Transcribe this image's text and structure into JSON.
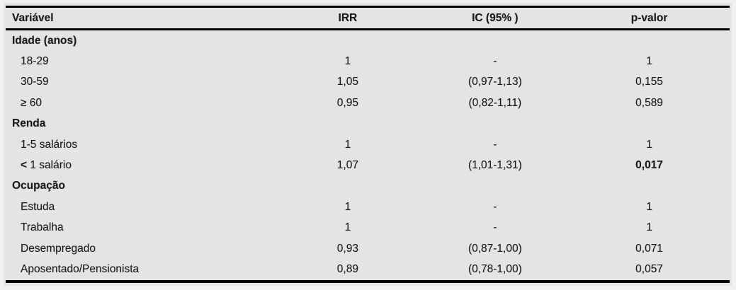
{
  "colors": {
    "page_background": "#f1f1f1",
    "table_background": "#e4e4e4",
    "rule_color": "#000000",
    "text_color": "#1c1c1c"
  },
  "table": {
    "columns": [
      "Variável",
      "IRR",
      "IC (95% )",
      "p-valor"
    ],
    "rows": [
      {
        "kind": "section",
        "label": "Idade (anos)"
      },
      {
        "kind": "data",
        "label": "18-29",
        "irr": "1",
        "ic": "-",
        "p": "1"
      },
      {
        "kind": "data",
        "label": "30-59",
        "irr": "1,05",
        "ic": "(0,97-1,13)",
        "p": "0,155"
      },
      {
        "kind": "data",
        "label": "≥ 60",
        "irr": "0,95",
        "ic": "(0,82-1,11)",
        "p": "0,589"
      },
      {
        "kind": "section",
        "label": "Renda"
      },
      {
        "kind": "data",
        "label": "1-5 salários",
        "irr": "1",
        "ic": "-",
        "p": "1"
      },
      {
        "kind": "data",
        "label": "< 1 salário",
        "label_bold_prefix": "<",
        "irr": "1,07",
        "ic": "(1,01-1,31)",
        "p": "0,017",
        "p_bold": true
      },
      {
        "kind": "section",
        "label": "Ocupação"
      },
      {
        "kind": "data",
        "label": "Estuda",
        "irr": "1",
        "ic": "-",
        "p": "1"
      },
      {
        "kind": "data",
        "label": "Trabalha",
        "irr": "1",
        "ic": "-",
        "p": "1"
      },
      {
        "kind": "data",
        "label": "Desempregado",
        "irr": "0,93",
        "ic": "(0,87-1,00)",
        "p": "0,071"
      },
      {
        "kind": "data",
        "label": "Aposentado/Pensionista",
        "irr": "0,89",
        "ic": "(0,78-1,00)",
        "p": "0,057"
      }
    ]
  }
}
